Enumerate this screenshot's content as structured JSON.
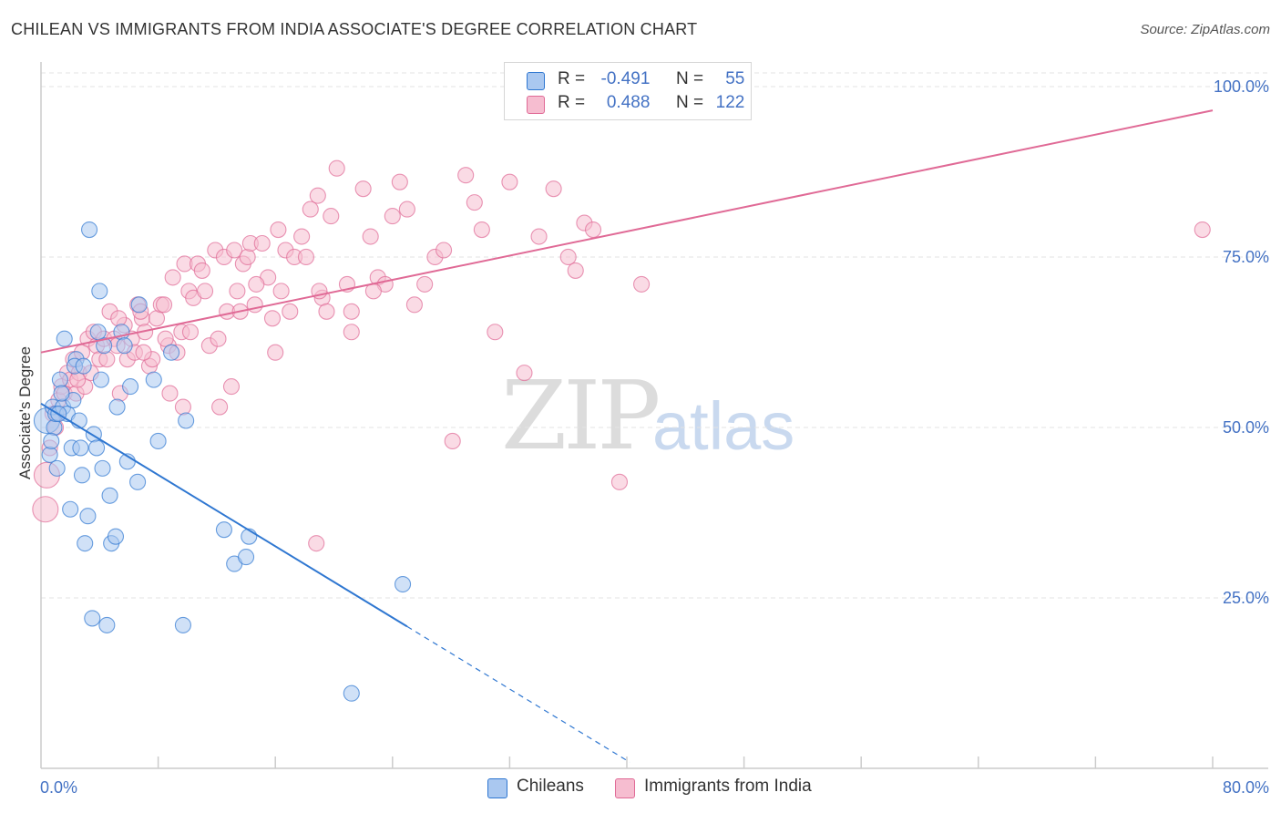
{
  "title": "CHILEAN VS IMMIGRANTS FROM INDIA ASSOCIATE'S DEGREE CORRELATION CHART",
  "source": "Source: ZipAtlas.com",
  "watermark": {
    "zip": "ZIP",
    "atlas": "atlas"
  },
  "legend": {
    "r_label": "R =",
    "n_label": "N =",
    "blue": {
      "r": "-0.491",
      "n": "55"
    },
    "pink": {
      "r": "0.488",
      "n": "122"
    }
  },
  "colors": {
    "blue": "#2f77d1",
    "blue_fill": "#aac8f0",
    "pink": "#e06a96",
    "pink_fill": "#f6bdd0",
    "tick": "#4472c4",
    "grid": "#e3e3e3"
  },
  "chart_data": {
    "type": "scatter",
    "title": "CHILEAN VS IMMIGRANTS FROM INDIA ASSOCIATE'S DEGREE CORRELATION CHART",
    "xlabel": "",
    "ylabel": "Associate's Degree",
    "xlim": [
      0,
      80
    ],
    "ylim": [
      0,
      102
    ],
    "x_tick_labels": [
      "0.0%",
      "80.0%"
    ],
    "y_ticks": [
      25,
      50,
      75,
      100
    ],
    "y_tick_labels": [
      "25.0%",
      "50.0%",
      "75.0%",
      "100.0%"
    ],
    "grid": true,
    "legend_position": "top-center",
    "series": [
      {
        "name": "Chileans",
        "color": "#2f77d1",
        "r": -0.491,
        "n": 55,
        "trend": {
          "x0": 0,
          "y0": 53.5,
          "x1": 25,
          "y1": 20.8,
          "dash_to_x": 40.2,
          "dash_to_y": 0.9
        },
        "points": [
          [
            0.4,
            51
          ],
          [
            0.6,
            46
          ],
          [
            0.8,
            53
          ],
          [
            0.9,
            50
          ],
          [
            1.0,
            52
          ],
          [
            1.1,
            44
          ],
          [
            1.3,
            57
          ],
          [
            1.5,
            53
          ],
          [
            1.6,
            63
          ],
          [
            1.8,
            52
          ],
          [
            2.0,
            38
          ],
          [
            2.1,
            47
          ],
          [
            2.2,
            54
          ],
          [
            2.4,
            60
          ],
          [
            2.6,
            51
          ],
          [
            2.7,
            47
          ],
          [
            2.8,
            43
          ],
          [
            3.0,
            33
          ],
          [
            3.2,
            37
          ],
          [
            3.3,
            79
          ],
          [
            3.6,
            49
          ],
          [
            3.8,
            47
          ],
          [
            3.5,
            22
          ],
          [
            4.0,
            70
          ],
          [
            4.1,
            57
          ],
          [
            4.2,
            44
          ],
          [
            4.3,
            62
          ],
          [
            4.5,
            21
          ],
          [
            4.7,
            40
          ],
          [
            4.8,
            33
          ],
          [
            5.1,
            34
          ],
          [
            5.2,
            53
          ],
          [
            5.5,
            64
          ],
          [
            5.7,
            62
          ],
          [
            5.9,
            45
          ],
          [
            6.1,
            56
          ],
          [
            6.6,
            42
          ],
          [
            6.7,
            68
          ],
          [
            7.7,
            57
          ],
          [
            8.0,
            48
          ],
          [
            8.9,
            61
          ],
          [
            9.7,
            21
          ],
          [
            9.9,
            51
          ],
          [
            12.5,
            35
          ],
          [
            13.2,
            30
          ],
          [
            14.0,
            31
          ],
          [
            14.2,
            34
          ],
          [
            21.2,
            11
          ],
          [
            24.7,
            27
          ],
          [
            1.2,
            52
          ],
          [
            2.3,
            59
          ],
          [
            1.4,
            55
          ],
          [
            0.7,
            48
          ],
          [
            3.9,
            64
          ],
          [
            2.9,
            59
          ]
        ]
      },
      {
        "name": "Immigrants from India",
        "color": "#e06a96",
        "r": 0.488,
        "n": 122,
        "trend": {
          "x0": 0,
          "y0": 61,
          "x1": 80,
          "y1": 96.5
        },
        "points": [
          [
            0.3,
            38
          ],
          [
            0.4,
            43
          ],
          [
            0.6,
            47
          ],
          [
            0.8,
            52
          ],
          [
            1.0,
            50
          ],
          [
            1.2,
            54
          ],
          [
            1.4,
            56
          ],
          [
            1.6,
            55
          ],
          [
            1.8,
            58
          ],
          [
            2.0,
            57
          ],
          [
            2.2,
            60
          ],
          [
            2.4,
            55
          ],
          [
            2.6,
            58
          ],
          [
            2.8,
            61
          ],
          [
            3.0,
            56
          ],
          [
            3.2,
            63
          ],
          [
            3.4,
            58
          ],
          [
            3.6,
            64
          ],
          [
            3.8,
            62
          ],
          [
            4.0,
            60
          ],
          [
            4.3,
            63
          ],
          [
            4.5,
            60
          ],
          [
            4.7,
            67
          ],
          [
            5.0,
            63
          ],
          [
            5.2,
            62
          ],
          [
            5.4,
            55
          ],
          [
            5.7,
            65
          ],
          [
            5.9,
            60
          ],
          [
            6.2,
            63
          ],
          [
            6.4,
            61
          ],
          [
            6.6,
            68
          ],
          [
            6.9,
            66
          ],
          [
            7.1,
            64
          ],
          [
            7.4,
            59
          ],
          [
            7.6,
            60
          ],
          [
            7.9,
            66
          ],
          [
            8.2,
            68
          ],
          [
            8.4,
            68
          ],
          [
            8.7,
            62
          ],
          [
            9.0,
            72
          ],
          [
            9.3,
            61
          ],
          [
            9.6,
            64
          ],
          [
            9.8,
            74
          ],
          [
            10.1,
            70
          ],
          [
            10.4,
            69
          ],
          [
            10.7,
            74
          ],
          [
            11.0,
            73
          ],
          [
            11.2,
            70
          ],
          [
            11.5,
            62
          ],
          [
            11.9,
            76
          ],
          [
            12.1,
            63
          ],
          [
            12.5,
            75
          ],
          [
            12.7,
            67
          ],
          [
            13.0,
            56
          ],
          [
            13.2,
            76
          ],
          [
            13.4,
            70
          ],
          [
            13.8,
            74
          ],
          [
            14.1,
            75
          ],
          [
            14.3,
            77
          ],
          [
            14.6,
            68
          ],
          [
            15.1,
            77
          ],
          [
            15.5,
            72
          ],
          [
            15.8,
            66
          ],
          [
            16.2,
            79
          ],
          [
            16.4,
            70
          ],
          [
            16.7,
            76
          ],
          [
            17.0,
            67
          ],
          [
            17.3,
            75
          ],
          [
            17.8,
            78
          ],
          [
            18.1,
            75
          ],
          [
            18.4,
            82
          ],
          [
            18.9,
            84
          ],
          [
            19.2,
            69
          ],
          [
            19.5,
            67
          ],
          [
            19.8,
            81
          ],
          [
            20.2,
            88
          ],
          [
            20.9,
            71
          ],
          [
            21.2,
            64
          ],
          [
            22.0,
            85
          ],
          [
            22.5,
            78
          ],
          [
            23.0,
            72
          ],
          [
            23.5,
            71
          ],
          [
            24.0,
            81
          ],
          [
            24.5,
            86
          ],
          [
            25.0,
            82
          ],
          [
            25.5,
            68
          ],
          [
            26.2,
            71
          ],
          [
            26.9,
            75
          ],
          [
            27.5,
            76
          ],
          [
            28.1,
            48
          ],
          [
            29.0,
            87
          ],
          [
            29.6,
            83
          ],
          [
            30.1,
            79
          ],
          [
            31.0,
            64
          ],
          [
            32.0,
            86
          ],
          [
            33.0,
            58
          ],
          [
            34.0,
            78
          ],
          [
            35.0,
            85
          ],
          [
            36.0,
            75
          ],
          [
            36.5,
            73
          ],
          [
            37.1,
            80
          ],
          [
            37.7,
            79
          ],
          [
            39.5,
            42
          ],
          [
            41.0,
            71
          ],
          [
            79.3,
            79
          ],
          [
            8.8,
            55
          ],
          [
            9.7,
            53
          ],
          [
            12.2,
            53
          ],
          [
            18.8,
            33
          ],
          [
            14.7,
            71
          ],
          [
            21.2,
            67
          ],
          [
            7.0,
            61
          ],
          [
            8.5,
            63
          ],
          [
            10.2,
            64
          ],
          [
            13.6,
            67
          ],
          [
            16.0,
            61
          ],
          [
            19.0,
            70
          ],
          [
            22.7,
            70
          ],
          [
            5.3,
            66
          ],
          [
            6.8,
            67
          ],
          [
            1.1,
            52
          ],
          [
            2.5,
            57
          ]
        ]
      }
    ]
  },
  "bottom_legend": {
    "blue": "Chileans",
    "pink": "Immigrants from India"
  }
}
